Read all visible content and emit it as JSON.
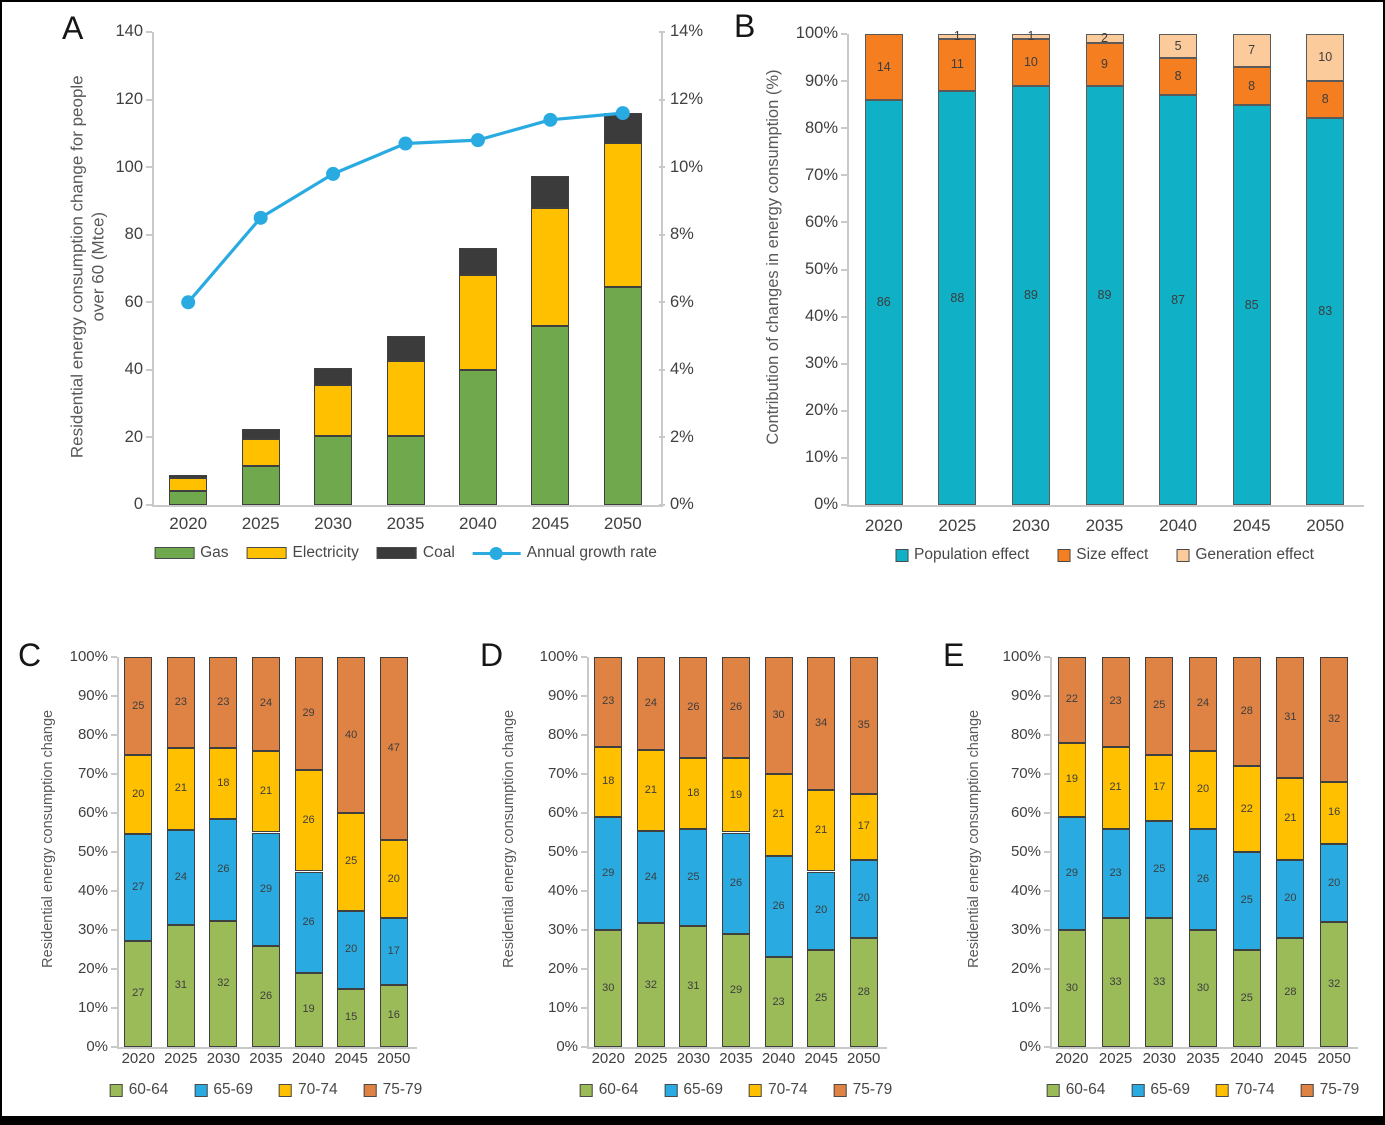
{
  "figure": {
    "background": "#FFFFFF",
    "border_color": "#000000",
    "axis_color": "#C9C9C9",
    "tick_text_color": "#404040"
  },
  "chart_data": "see charts",
  "charts": [
    {
      "id": "A",
      "letter": "A",
      "type": "bar-line",
      "ylabel": "Residential energy consumption change  for people\nover 60  (Mtce)",
      "categories": [
        "2020",
        "2025",
        "2030",
        "2035",
        "2040",
        "2045",
        "2050"
      ],
      "series": [
        {
          "name": "Gas",
          "color": "#6FA84D",
          "values": [
            4,
            11.5,
            20.5,
            20.5,
            40,
            53,
            64.5
          ]
        },
        {
          "name": "Electricity",
          "color": "#FFC000",
          "values": [
            4,
            8,
            15,
            22,
            28,
            35,
            42.5
          ]
        },
        {
          "name": "Coal",
          "color": "#3B3B3B",
          "values": [
            1,
            3,
            5,
            7.5,
            8,
            9.5,
            9
          ]
        }
      ],
      "line": {
        "name": "Annual growth rate",
        "color": "#29ABE2",
        "values": [
          6.0,
          8.5,
          9.8,
          10.7,
          10.8,
          11.4,
          11.6
        ]
      },
      "left_axis": {
        "min": 0,
        "max": 140,
        "step": 20,
        "suffix": ""
      },
      "right_axis": {
        "min": 0,
        "max": 14,
        "step": 2,
        "suffix": "%"
      },
      "show_segment_labels": false,
      "segment_border": "#3F3F3F"
    },
    {
      "id": "B",
      "letter": "B",
      "type": "stacked100",
      "ylabel": "Contribution of changes in energy consumption (%)",
      "categories": [
        "2020",
        "2025",
        "2030",
        "2035",
        "2040",
        "2045",
        "2050"
      ],
      "series": [
        {
          "name": "Population effect",
          "color": "#10B0C6",
          "values": [
            86,
            88,
            89,
            89,
            87,
            85,
            83
          ]
        },
        {
          "name": "Size effect",
          "color": "#F57E20",
          "values": [
            14,
            11,
            10,
            9,
            8,
            8,
            8
          ]
        },
        {
          "name": "Generation effect",
          "color": "#FBCB9B",
          "values": [
            0,
            1,
            1,
            2,
            5,
            7,
            10
          ]
        }
      ],
      "axis": {
        "min": 0,
        "max": 100,
        "step": 10,
        "suffix": "%"
      },
      "show_segment_labels": true,
      "segment_border": "#5A5A5A"
    },
    {
      "id": "C",
      "letter": "C",
      "type": "stacked100",
      "ylabel": "Residential energy consumption change",
      "categories": [
        "2020",
        "2025",
        "2030",
        "2035",
        "2040",
        "2045",
        "2050"
      ],
      "series": [
        {
          "name": "60-64",
          "color": "#9BBB59",
          "values": [
            27,
            31,
            32,
            26,
            19,
            15,
            16
          ]
        },
        {
          "name": "65-69",
          "color": "#29ABE2",
          "values": [
            27,
            24,
            26,
            29,
            26,
            20,
            17
          ]
        },
        {
          "name": "70-74",
          "color": "#FFC000",
          "values": [
            20,
            21,
            18,
            21,
            26,
            25,
            20
          ]
        },
        {
          "name": "75-79",
          "color": "#DF8344",
          "values": [
            25,
            23,
            23,
            24,
            29,
            40,
            47
          ]
        }
      ],
      "axis": {
        "min": 0,
        "max": 100,
        "step": 10,
        "suffix": "%"
      },
      "show_segment_labels": true,
      "segment_border": "#3F3F3F"
    },
    {
      "id": "D",
      "letter": "D",
      "type": "stacked100",
      "ylabel": "Residential energy consumption change",
      "categories": [
        "2020",
        "2025",
        "2030",
        "2035",
        "2040",
        "2045",
        "2050"
      ],
      "series": [
        {
          "name": "60-64",
          "color": "#9BBB59",
          "values": [
            30,
            32,
            31,
            29,
            23,
            25,
            28
          ]
        },
        {
          "name": "65-69",
          "color": "#29ABE2",
          "values": [
            29,
            24,
            25,
            26,
            26,
            20,
            20
          ]
        },
        {
          "name": "70-74",
          "color": "#FFC000",
          "values": [
            18,
            21,
            18,
            19,
            21,
            21,
            17
          ]
        },
        {
          "name": "75-79",
          "color": "#DF8344",
          "values": [
            23,
            24,
            26,
            26,
            30,
            34,
            35
          ]
        }
      ],
      "axis": {
        "min": 0,
        "max": 100,
        "step": 10,
        "suffix": "%"
      },
      "show_segment_labels": true,
      "segment_border": "#3F3F3F"
    },
    {
      "id": "E",
      "letter": "E",
      "type": "stacked100",
      "ylabel": "Residential energy consumption change",
      "categories": [
        "2020",
        "2025",
        "2030",
        "2035",
        "2040",
        "2045",
        "2050"
      ],
      "series": [
        {
          "name": "60-64",
          "color": "#9BBB59",
          "values": [
            30,
            33,
            33,
            30,
            25,
            28,
            32
          ]
        },
        {
          "name": "65-69",
          "color": "#29ABE2",
          "values": [
            29,
            23,
            25,
            26,
            25,
            20,
            20
          ]
        },
        {
          "name": "70-74",
          "color": "#FFC000",
          "values": [
            19,
            21,
            17,
            20,
            22,
            21,
            16
          ]
        },
        {
          "name": "75-79",
          "color": "#DF8344",
          "values": [
            22,
            23,
            25,
            24,
            28,
            31,
            32
          ]
        }
      ],
      "axis": {
        "min": 0,
        "max": 100,
        "step": 10,
        "suffix": "%"
      },
      "show_segment_labels": true,
      "segment_border": "#3F3F3F"
    }
  ]
}
